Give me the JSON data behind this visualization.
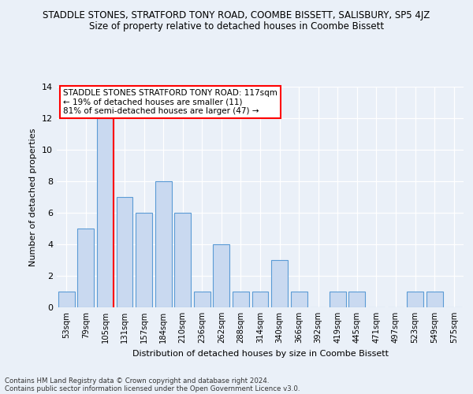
{
  "title": "STADDLE STONES, STRATFORD TONY ROAD, COOMBE BISSETT, SALISBURY, SP5 4JZ",
  "subtitle": "Size of property relative to detached houses in Coombe Bissett",
  "xlabel": "Distribution of detached houses by size in Coombe Bissett",
  "ylabel": "Number of detached properties",
  "bin_labels": [
    "53sqm",
    "79sqm",
    "105sqm",
    "131sqm",
    "157sqm",
    "184sqm",
    "210sqm",
    "236sqm",
    "262sqm",
    "288sqm",
    "314sqm",
    "340sqm",
    "366sqm",
    "392sqm",
    "419sqm",
    "445sqm",
    "471sqm",
    "497sqm",
    "523sqm",
    "549sqm",
    "575sqm"
  ],
  "bar_values": [
    1,
    5,
    12,
    7,
    6,
    8,
    6,
    1,
    4,
    1,
    1,
    3,
    1,
    0,
    1,
    1,
    0,
    0,
    1,
    1,
    0
  ],
  "bar_color": "#c9d9f0",
  "bar_edge_color": "#5b9bd5",
  "red_line_x": 2.425,
  "annotation_title": "STADDLE STONES STRATFORD TONY ROAD: 117sqm",
  "annotation_line1": "← 19% of detached houses are smaller (11)",
  "annotation_line2": "81% of semi-detached houses are larger (47) →",
  "ylim": [
    0,
    14
  ],
  "yticks": [
    0,
    2,
    4,
    6,
    8,
    10,
    12,
    14
  ],
  "footer_line1": "Contains HM Land Registry data © Crown copyright and database right 2024.",
  "footer_line2": "Contains public sector information licensed under the Open Government Licence v3.0.",
  "bg_color": "#eaf0f8",
  "plot_bg_color": "#eaf0f8"
}
